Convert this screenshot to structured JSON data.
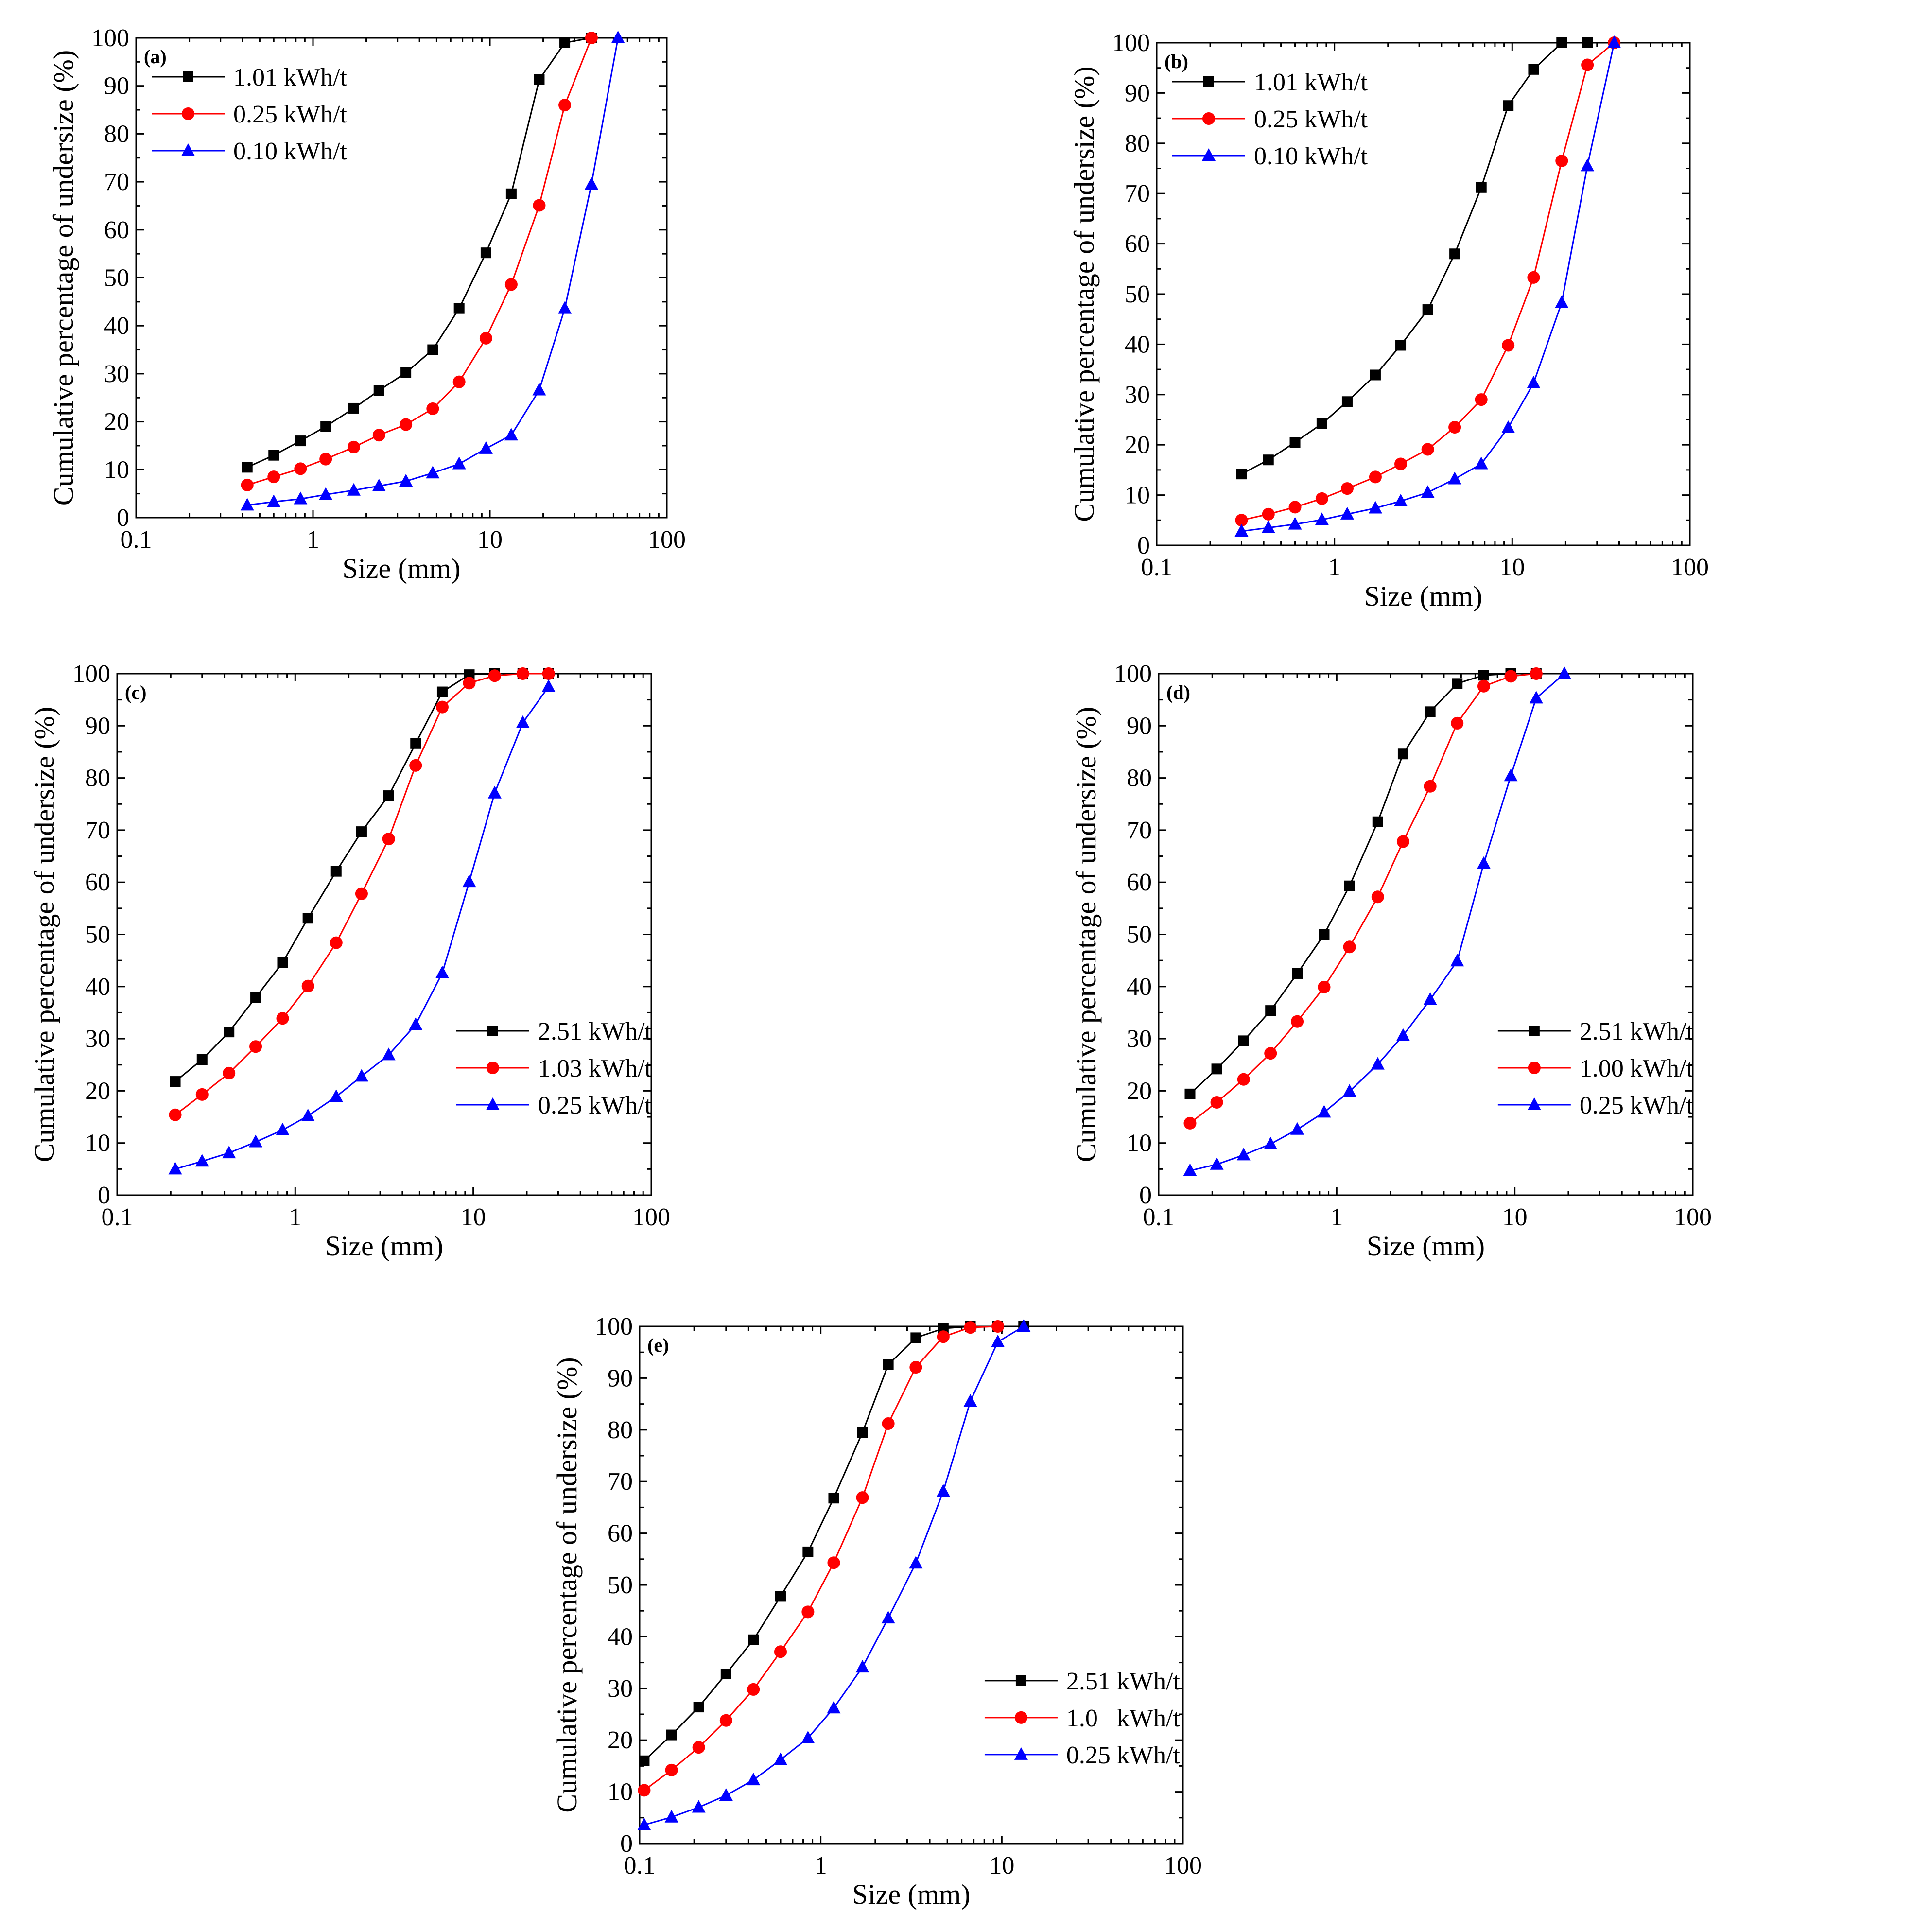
{
  "chart_data": [
    {
      "type": "line",
      "panel_label": "(a)",
      "xlabel": "Size (mm)",
      "ylabel": "Cumulative percentage of undersize (%)",
      "xscale": "log",
      "xlim": [
        0.1,
        100
      ],
      "ylim": [
        0,
        100
      ],
      "x_tick_labels": [
        "0.1",
        "1",
        "10",
        "100"
      ],
      "y_tick_labels": [
        "0",
        "10",
        "20",
        "30",
        "40",
        "50",
        "60",
        "70",
        "80",
        "90",
        "100"
      ],
      "legend_position": "top-left",
      "series": [
        {
          "name": "1.01 kWh/t",
          "color": "#000000",
          "marker": "square",
          "x": [
            0.425,
            0.6,
            0.85,
            1.18,
            1.7,
            2.36,
            3.35,
            4.75,
            6.7,
            9.5,
            13.2,
            19,
            26.5,
            37.5
          ],
          "y": [
            10.5,
            13,
            16,
            19,
            22.8,
            26.5,
            30.2,
            35,
            43.6,
            55.2,
            67.5,
            91.3,
            99,
            100
          ]
        },
        {
          "name": "0.25 kWh/t",
          "color": "#ff0000",
          "marker": "circle",
          "x": [
            0.425,
            0.6,
            0.85,
            1.18,
            1.7,
            2.36,
            3.35,
            4.75,
            6.7,
            9.5,
            13.2,
            19,
            26.5,
            37.5
          ],
          "y": [
            6.8,
            8.5,
            10.2,
            12.2,
            14.7,
            17.2,
            19.4,
            22.7,
            28.3,
            37.4,
            48.6,
            65.1,
            86,
            100
          ]
        },
        {
          "name": "0.10 kWh/t",
          "color": "#0000ff",
          "marker": "triangle",
          "x": [
            0.425,
            0.6,
            0.85,
            1.18,
            1.7,
            2.36,
            3.35,
            4.75,
            6.7,
            9.5,
            13.2,
            19,
            26.5,
            37.5,
            53
          ],
          "y": [
            2.6,
            3.3,
            3.9,
            4.8,
            5.7,
            6.6,
            7.6,
            9.3,
            11.2,
            14.4,
            17.2,
            26.6,
            43.6,
            69.5,
            100
          ]
        }
      ]
    },
    {
      "type": "line",
      "panel_label": "(b)",
      "xlabel": "Size (mm)",
      "ylabel": "Cumulative percentage of undersize (%)",
      "xscale": "log",
      "xlim": [
        0.1,
        100
      ],
      "ylim": [
        0,
        100
      ],
      "x_tick_labels": [
        "0.1",
        "1",
        "10",
        "100"
      ],
      "y_tick_labels": [
        "0",
        "10",
        "20",
        "30",
        "40",
        "50",
        "60",
        "70",
        "80",
        "90",
        "100"
      ],
      "legend_position": "top-left",
      "series": [
        {
          "name": "1.01 kWh/t",
          "color": "#000000",
          "marker": "square",
          "x": [
            0.3,
            0.425,
            0.6,
            0.85,
            1.18,
            1.7,
            2.36,
            3.35,
            4.75,
            6.7,
            9.5,
            13.2,
            19,
            26.5
          ],
          "y": [
            14.2,
            17,
            20.5,
            24.2,
            28.6,
            33.9,
            39.8,
            46.9,
            58,
            71.2,
            87.5,
            94.7,
            100,
            100
          ]
        },
        {
          "name": "0.25 kWh/t",
          "color": "#ff0000",
          "marker": "circle",
          "x": [
            0.3,
            0.425,
            0.6,
            0.85,
            1.18,
            1.7,
            2.36,
            3.35,
            4.75,
            6.7,
            9.5,
            13.2,
            19,
            26.5,
            37.5
          ],
          "y": [
            5,
            6.2,
            7.6,
            9.3,
            11.3,
            13.6,
            16.2,
            19.1,
            23.5,
            29,
            39.8,
            53.3,
            76.5,
            95.6,
            100
          ]
        },
        {
          "name": "0.10 kWh/t",
          "color": "#0000ff",
          "marker": "triangle",
          "x": [
            0.3,
            0.425,
            0.6,
            0.85,
            1.18,
            1.7,
            2.36,
            3.35,
            4.75,
            6.7,
            9.5,
            13.2,
            19,
            26.5,
            37.5
          ],
          "y": [
            2.8,
            3.5,
            4.2,
            5.1,
            6.2,
            7.4,
            8.8,
            10.5,
            13.2,
            16.2,
            23.4,
            32.3,
            48.3,
            75.5,
            100
          ]
        }
      ]
    },
    {
      "type": "line",
      "panel_label": "(c)",
      "xlabel": "Size (mm)",
      "ylabel": "Cumulative percentage of undersize (%)",
      "xscale": "log",
      "xlim": [
        0.1,
        100
      ],
      "ylim": [
        0,
        100
      ],
      "x_tick_labels": [
        "0.1",
        "1",
        "10",
        "100"
      ],
      "y_tick_labels": [
        "0",
        "10",
        "20",
        "30",
        "40",
        "50",
        "60",
        "70",
        "80",
        "90",
        "100"
      ],
      "legend_position": "center-right",
      "series": [
        {
          "name": "2.51 kWh/t",
          "color": "#000000",
          "marker": "square",
          "x": [
            0.212,
            0.3,
            0.425,
            0.6,
            0.85,
            1.18,
            1.7,
            2.36,
            3.35,
            4.75,
            6.7,
            9.5,
            13.2,
            19,
            26.5
          ],
          "y": [
            21.8,
            26,
            31.3,
            37.9,
            44.6,
            53.1,
            62.1,
            69.7,
            76.6,
            86.6,
            96.5,
            99.8,
            100,
            100,
            100
          ]
        },
        {
          "name": "1.03 kWh/t",
          "color": "#ff0000",
          "marker": "circle",
          "x": [
            0.212,
            0.3,
            0.425,
            0.6,
            0.85,
            1.18,
            1.7,
            2.36,
            3.35,
            4.75,
            6.7,
            9.5,
            13.2,
            19,
            26.5
          ],
          "y": [
            15.4,
            19.3,
            23.4,
            28.5,
            33.9,
            40.1,
            48.4,
            57.8,
            68.3,
            82.4,
            93.6,
            98.2,
            99.6,
            100,
            100
          ]
        },
        {
          "name": "0.25 kWh/t",
          "color": "#0000ff",
          "marker": "triangle",
          "x": [
            0.212,
            0.3,
            0.425,
            0.6,
            0.85,
            1.18,
            1.7,
            2.36,
            3.35,
            4.75,
            6.7,
            9.5,
            13.2,
            19,
            26.5
          ],
          "y": [
            5,
            6.5,
            8.1,
            10.2,
            12.5,
            15.2,
            18.9,
            22.8,
            26.9,
            32.7,
            42.6,
            60.1,
            77.1,
            90.6,
            97.5
          ]
        }
      ]
    },
    {
      "type": "line",
      "panel_label": "(d)",
      "xlabel": "Size (mm)",
      "ylabel": "Cumulative percentage of undersize (%)",
      "xscale": "log",
      "xlim": [
        0.1,
        100
      ],
      "ylim": [
        0,
        100
      ],
      "x_tick_labels": [
        "0.1",
        "1",
        "10",
        "100"
      ],
      "y_tick_labels": [
        "0",
        "10",
        "20",
        "30",
        "40",
        "50",
        "60",
        "70",
        "80",
        "90",
        "100"
      ],
      "legend_position": "center-right",
      "series": [
        {
          "name": "2.51 kWh/t",
          "color": "#000000",
          "marker": "square",
          "x": [
            0.15,
            0.212,
            0.3,
            0.425,
            0.6,
            0.85,
            1.18,
            1.7,
            2.36,
            3.35,
            4.75,
            6.7,
            9.5,
            13.2
          ],
          "y": [
            19.4,
            24.2,
            29.6,
            35.4,
            42.5,
            50,
            59.3,
            71.6,
            84.6,
            92.7,
            98.1,
            99.7,
            100,
            100
          ]
        },
        {
          "name": "1.00 kWh/t",
          "color": "#ff0000",
          "marker": "circle",
          "x": [
            0.15,
            0.212,
            0.3,
            0.425,
            0.6,
            0.85,
            1.18,
            1.7,
            2.36,
            3.35,
            4.75,
            6.7,
            9.5,
            13.2
          ],
          "y": [
            13.8,
            17.8,
            22.2,
            27.2,
            33.3,
            39.9,
            47.6,
            57.2,
            67.8,
            78.4,
            90.5,
            97.6,
            99.5,
            100
          ]
        },
        {
          "name": "0.25 kWh/t",
          "color": "#0000ff",
          "marker": "triangle",
          "x": [
            0.15,
            0.212,
            0.3,
            0.425,
            0.6,
            0.85,
            1.18,
            1.7,
            2.36,
            3.35,
            4.75,
            6.7,
            9.5,
            13.2,
            19
          ],
          "y": [
            4.7,
            5.9,
            7.7,
            9.8,
            12.6,
            15.9,
            19.9,
            25.1,
            30.6,
            37.5,
            44.9,
            63.6,
            80.4,
            95.3,
            100
          ]
        }
      ]
    },
    {
      "type": "line",
      "panel_label": "(e)",
      "xlabel": "Size (mm)",
      "ylabel": "Cumulative percentage of undersize (%)",
      "xscale": "log",
      "xlim": [
        0.1,
        100
      ],
      "ylim": [
        0,
        100
      ],
      "x_tick_labels": [
        "0.1",
        "1",
        "10",
        "100"
      ],
      "y_tick_labels": [
        "0",
        "10",
        "20",
        "30",
        "40",
        "50",
        "60",
        "70",
        "80",
        "90",
        "100"
      ],
      "legend_position": "center-right",
      "series": [
        {
          "name": "2.51 kWh/t",
          "color": "#000000",
          "marker": "square",
          "x": [
            0.106,
            0.15,
            0.212,
            0.3,
            0.425,
            0.6,
            0.85,
            1.18,
            1.7,
            2.36,
            3.35,
            4.75,
            6.7,
            9.5,
            13.2
          ],
          "y": [
            16,
            21,
            26.4,
            32.8,
            39.4,
            47.8,
            56.4,
            66.8,
            79.5,
            92.6,
            97.8,
            99.6,
            100,
            100,
            100
          ]
        },
        {
          "name": "1.0   kWh/t",
          "color": "#ff0000",
          "marker": "circle",
          "x": [
            0.106,
            0.15,
            0.212,
            0.3,
            0.425,
            0.6,
            0.85,
            1.18,
            1.7,
            2.36,
            3.35,
            4.75,
            6.7,
            9.5
          ],
          "y": [
            10.3,
            14.2,
            18.6,
            23.8,
            29.8,
            37.1,
            44.8,
            54.3,
            66.9,
            81.2,
            92.1,
            98,
            99.8,
            100
          ]
        },
        {
          "name": "0.25 kWh/t",
          "color": "#0000ff",
          "marker": "triangle",
          "x": [
            0.106,
            0.15,
            0.212,
            0.3,
            0.425,
            0.6,
            0.85,
            1.18,
            1.7,
            2.36,
            3.35,
            4.75,
            6.7,
            9.5,
            13.2
          ],
          "y": [
            3.6,
            5.1,
            7,
            9.3,
            12.3,
            16.2,
            20.4,
            26.2,
            34.1,
            43.6,
            54.2,
            68.1,
            85.5,
            97,
            100
          ]
        }
      ]
    }
  ]
}
